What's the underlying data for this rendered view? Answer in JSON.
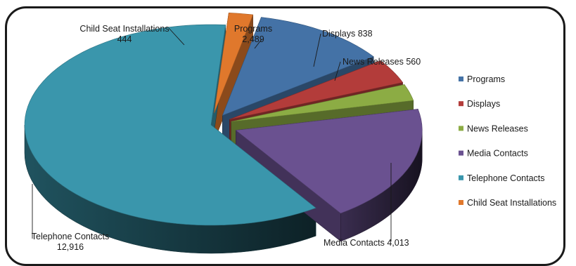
{
  "chart_data": {
    "type": "pie",
    "style": "3d-exploded",
    "title": "",
    "legend_position": "right",
    "slices": [
      {
        "name": "Programs",
        "value": 2489,
        "display": "2,489",
        "color": "#4472a6",
        "label_style": "two-line",
        "label_value": "2,489"
      },
      {
        "name": "Displays",
        "value": 838,
        "display": "838",
        "color": "#b33c3a",
        "label_style": "inline",
        "label_value": "838"
      },
      {
        "name": "News Releases",
        "value": 560,
        "display": "560",
        "color": "#8cac44",
        "label_style": "inline",
        "label_value": "560"
      },
      {
        "name": "Media Contacts",
        "value": 4013,
        "display": "4,013",
        "color": "#6a5190",
        "label_style": "inline",
        "label_value": "4,013"
      },
      {
        "name": "Telephone Contacts",
        "value": 12916,
        "display": "12,916",
        "color": "#3a96ac",
        "label_style": "two-line",
        "label_value": "12,916"
      },
      {
        "name": "Child Seat Installations",
        "value": 444,
        "display": "444",
        "color": "#e0782c",
        "label_style": "two-line",
        "label_value": "444"
      }
    ]
  }
}
